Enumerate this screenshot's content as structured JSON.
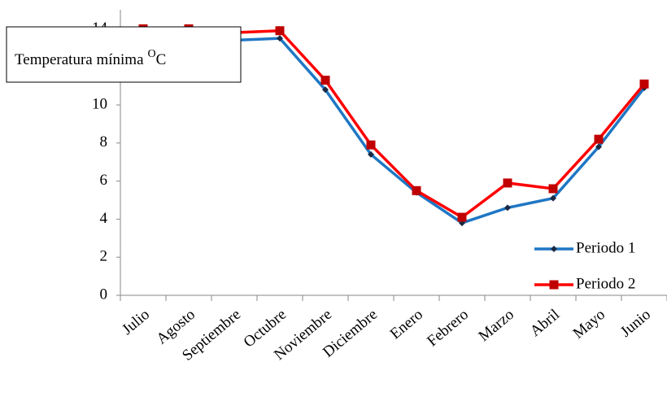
{
  "chart_data": {
    "type": "line",
    "title": "Temperatura mínima",
    "title_superscript": "O",
    "title_suffix": "C",
    "categories": [
      "Julio",
      "Agosto",
      "Septiembre",
      "Octubre",
      "Noviembre",
      "Diciembre",
      "Enero",
      "Febrero",
      "Marzo",
      "Abril",
      "Mayo",
      "Junio"
    ],
    "series": [
      {
        "name": "Periodo 1",
        "color": "#1f77c4",
        "marker_color": "#1a2a44",
        "marker": "diamond",
        "values": [
          13.8,
          13.7,
          13.4,
          13.5,
          10.8,
          7.4,
          5.4,
          3.8,
          4.6,
          5.1,
          7.8,
          10.9
        ]
      },
      {
        "name": "Periodo 2",
        "color": "#ff0000",
        "marker_color": "#c00000",
        "marker": "square",
        "values": [
          14.0,
          14.0,
          13.8,
          13.9,
          11.3,
          7.9,
          5.5,
          4.1,
          5.9,
          5.6,
          8.2,
          11.1
        ]
      }
    ],
    "ylim": [
      0,
      15
    ],
    "yticks": [
      0,
      2,
      4,
      6,
      8,
      10,
      12,
      14
    ],
    "grid": false,
    "legend": "lower right"
  }
}
